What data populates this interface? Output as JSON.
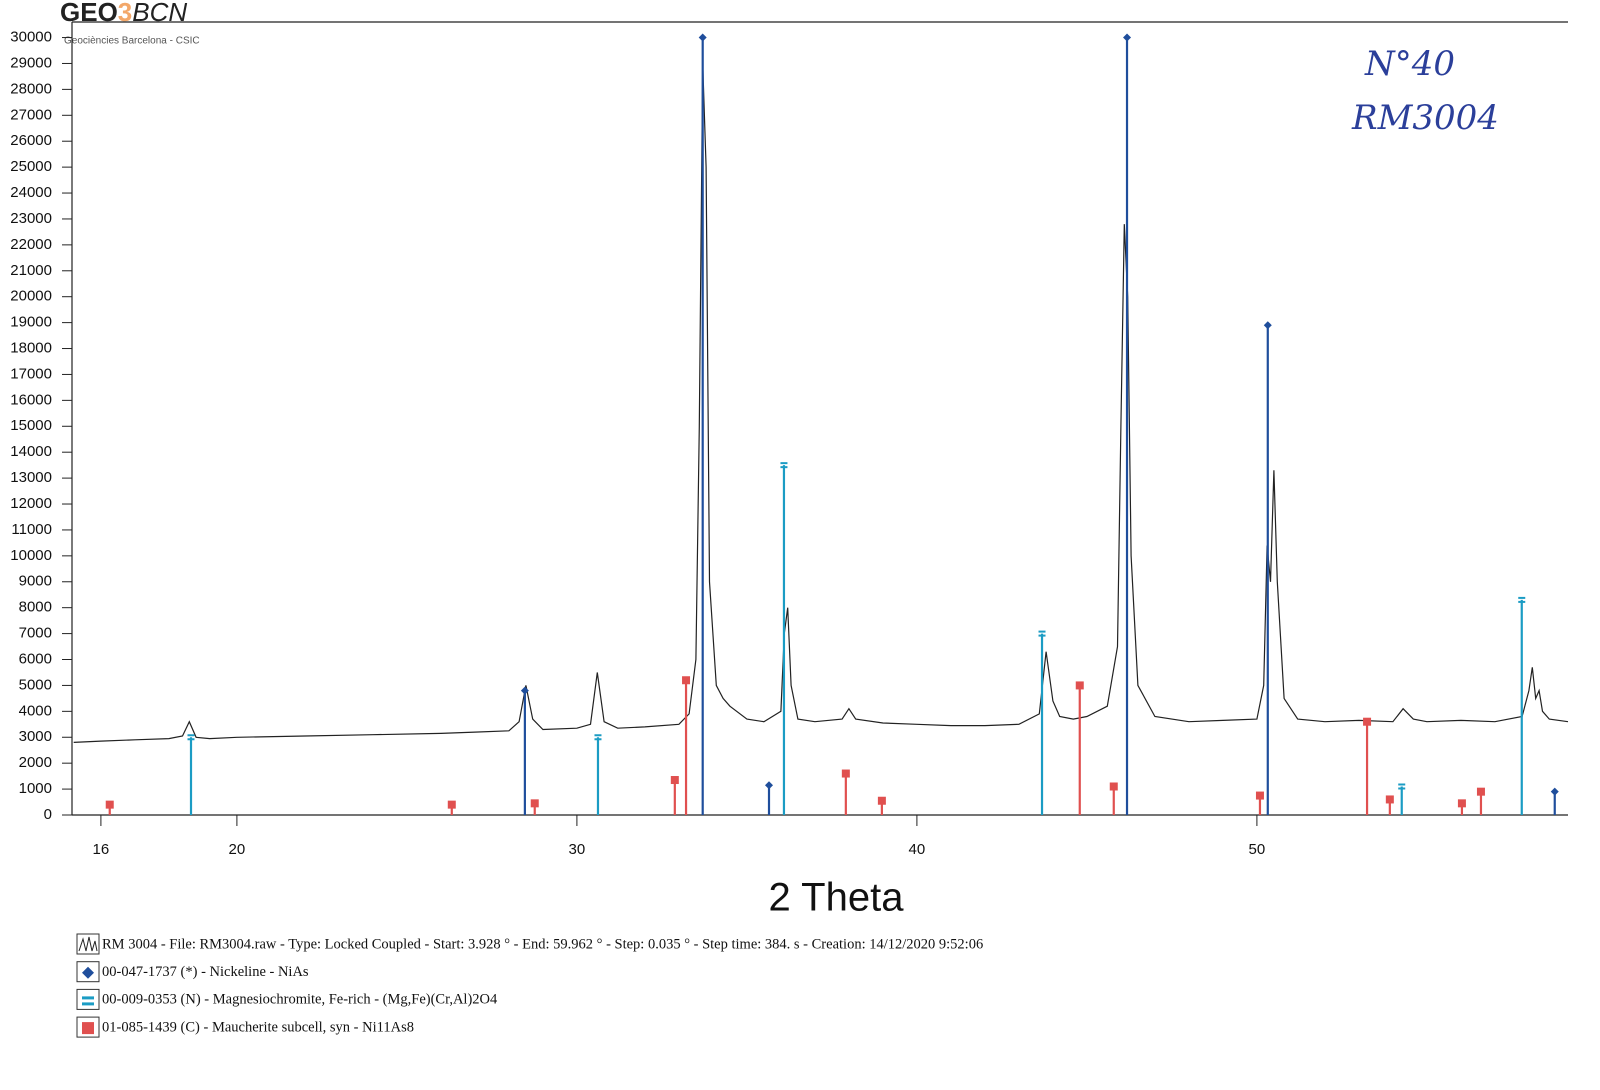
{
  "header": {
    "logo": [
      "GEO",
      "3",
      "BCN"
    ],
    "subtitle": "Geociències Barcelona - CSIC"
  },
  "annotations": [
    "N°40",
    "RM3004"
  ],
  "chart_data": {
    "type": "line",
    "x_label": "2 Theta",
    "xlim": [
      15.15,
      59.15
    ],
    "ylim": [
      0,
      30600
    ],
    "xticks": [
      16,
      20,
      30,
      40,
      50
    ],
    "yticks": [
      0,
      1000,
      2000,
      3000,
      4000,
      5000,
      6000,
      7000,
      8000,
      9000,
      10000,
      11000,
      12000,
      13000,
      14000,
      15000,
      16000,
      17000,
      18000,
      19000,
      20000,
      21000,
      22000,
      23000,
      24000,
      25000,
      26000,
      27000,
      28000,
      29000,
      30000
    ],
    "series": [
      {
        "name": "RM 3004 - File: RM3004.raw - Type: Locked Coupled - Start: 3.928 ° - End: 59.962 ° - Step: 0.035 ° - Step time: 384. s - Creation: 14/12/2020 9:52:06",
        "color": "#222222",
        "mark": "line",
        "x": [
          15.2,
          16,
          17,
          18,
          18.4,
          18.6,
          18.8,
          19.2,
          20,
          22,
          24,
          26,
          27,
          28,
          28.3,
          28.5,
          28.7,
          29,
          30,
          30.4,
          30.6,
          30.8,
          31.2,
          32,
          33,
          33.3,
          33.5,
          33.6,
          33.7,
          33.8,
          33.9,
          34.1,
          34.3,
          34.5,
          35,
          35.5,
          36,
          36.1,
          36.2,
          36.3,
          36.5,
          37,
          37.8,
          38,
          38.2,
          39,
          40,
          41,
          42,
          43,
          43.6,
          43.8,
          44.0,
          44.2,
          44.6,
          45,
          45.6,
          45.9,
          46.0,
          46.1,
          46.2,
          46.3,
          46.5,
          47,
          48,
          49,
          50,
          50.2,
          50.3,
          50.4,
          50.5,
          50.6,
          50.8,
          51.2,
          52,
          53,
          54,
          54.3,
          54.6,
          55,
          56,
          57,
          57.8,
          58.0,
          58.1,
          58.2,
          58.3,
          58.4,
          58.6,
          59.15
        ],
        "values": [
          2800,
          2850,
          2900,
          2950,
          3050,
          3600,
          3000,
          2950,
          3000,
          3050,
          3100,
          3150,
          3200,
          3250,
          3600,
          5000,
          3700,
          3300,
          3350,
          3500,
          5500,
          3600,
          3350,
          3400,
          3500,
          3900,
          6000,
          15000,
          29000,
          25000,
          9000,
          5000,
          4500,
          4200,
          3700,
          3600,
          4000,
          7000,
          8000,
          5000,
          3700,
          3600,
          3700,
          4100,
          3700,
          3550,
          3500,
          3450,
          3450,
          3500,
          3900,
          6300,
          4400,
          3800,
          3700,
          3800,
          4200,
          6500,
          15000,
          22800,
          20000,
          10000,
          5000,
          3800,
          3600,
          3650,
          3700,
          5000,
          10400,
          9000,
          13300,
          9000,
          4500,
          3700,
          3600,
          3650,
          3600,
          4100,
          3700,
          3600,
          3650,
          3600,
          3800,
          4800,
          5700,
          4500,
          4800,
          4000,
          3700,
          3600
        ]
      },
      {
        "name": "00-047-1737 (*) - Nickeline - NiAs",
        "color": "#1f4e9c",
        "mark": "stick",
        "marker": "diamond",
        "x": [
          28.47,
          33.7,
          35.65,
          46.18,
          50.32,
          58.76
        ],
        "values": [
          4800,
          30000,
          1150,
          30000,
          18900,
          900
        ]
      },
      {
        "name": "00-009-0353 (N) - Magnesiochromite, Fe-rich - (Mg,Fe)(Cr,Al)2O4",
        "color": "#1b9cc4",
        "mark": "stick",
        "marker": "bars",
        "x": [
          18.65,
          30.62,
          36.09,
          43.68,
          54.26,
          57.79
        ],
        "values": [
          3000,
          3000,
          13500,
          7000,
          1100,
          8300
        ]
      },
      {
        "name": "01-085-1439 (C) - Maucherite subcell, syn - Ni11As8",
        "color": "#e0504f",
        "mark": "stick",
        "marker": "square",
        "x": [
          16.26,
          26.32,
          28.76,
          32.88,
          33.21,
          37.91,
          38.97,
          44.79,
          45.79,
          50.09,
          53.24,
          53.91,
          56.03,
          56.59
        ],
        "values": [
          400,
          400,
          450,
          1350,
          5200,
          1600,
          550,
          5000,
          1100,
          750,
          3600,
          600,
          450,
          900
        ]
      }
    ]
  }
}
